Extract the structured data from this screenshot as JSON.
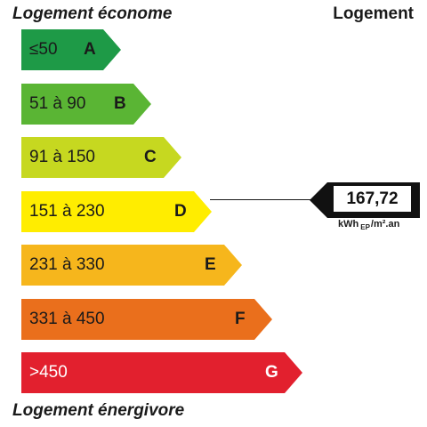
{
  "header": {
    "top_label": "Logement économe",
    "column_label": "Logement"
  },
  "footer": {
    "bottom_label": "Logement énergivore"
  },
  "bands": [
    {
      "letter": "A",
      "range": "≤50",
      "color": "#1e9a47",
      "dark": false
    },
    {
      "letter": "B",
      "range": "51 à 90",
      "color": "#5ab534",
      "dark": false
    },
    {
      "letter": "C",
      "range": "91 à 150",
      "color": "#c6d820",
      "dark": false
    },
    {
      "letter": "D",
      "range": "151 à 230",
      "color": "#ffed00",
      "dark": false
    },
    {
      "letter": "E",
      "range": "231 à 330",
      "color": "#f6b61c",
      "dark": false
    },
    {
      "letter": "F",
      "range": "331 à 450",
      "color": "#ea6f1c",
      "dark": false
    },
    {
      "letter": "G",
      "range": ">450",
      "color": "#e2202e",
      "dark": true
    }
  ],
  "current": {
    "value": "167,72",
    "class": "D",
    "unit_main": "kWh",
    "unit_sub": "EP",
    "unit_tail": "/m².an"
  }
}
